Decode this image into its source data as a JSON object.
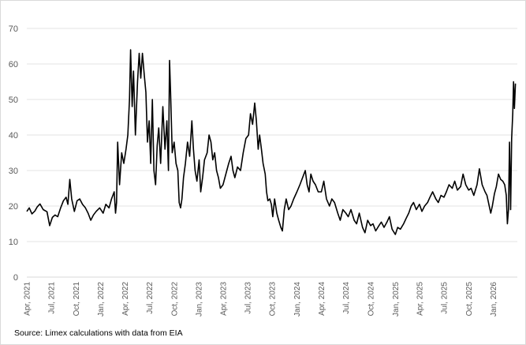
{
  "chart_data": {
    "type": "line",
    "title": "",
    "xlabel": "",
    "ylabel": "",
    "ylim": [
      0,
      70
    ],
    "yticks": [
      0,
      10,
      20,
      30,
      40,
      50,
      60,
      70
    ],
    "grid": "horizontal",
    "legend": "none",
    "x_tick_labels": [
      "Apr, 2021",
      "Jul, 2021",
      "Oct, 2021",
      "Jan, 2022",
      "Apr, 2022",
      "Jul, 2022",
      "Oct, 2022",
      "Jan, 2023",
      "Apr, 2023",
      "Jul, 2023",
      "Oct, 2023",
      "Jan, 2024",
      "Apr, 2024",
      "Jul, 2024",
      "Oct, 2024",
      "Jan, 2025",
      "Apr, 2025",
      "Jul, 2025",
      "Oct, 2025",
      "Jan, 2026"
    ],
    "series": [
      {
        "color": "#000000",
        "points": [
          [
            "2021-04-01",
            18.5
          ],
          [
            "2021-04-10",
            19.5
          ],
          [
            "2021-04-20",
            17.8
          ],
          [
            "2021-05-01",
            18.6
          ],
          [
            "2021-05-10",
            19.8
          ],
          [
            "2021-05-20",
            20.6
          ],
          [
            "2021-06-01",
            19.0
          ],
          [
            "2021-06-15",
            18.4
          ],
          [
            "2021-06-25",
            14.5
          ],
          [
            "2021-07-05",
            16.8
          ],
          [
            "2021-07-15",
            17.5
          ],
          [
            "2021-07-25",
            17.0
          ],
          [
            "2021-08-05",
            19.5
          ],
          [
            "2021-08-15",
            21.5
          ],
          [
            "2021-08-25",
            22.5
          ],
          [
            "2021-09-01",
            20.5
          ],
          [
            "2021-09-08",
            27.5
          ],
          [
            "2021-09-15",
            22.0
          ],
          [
            "2021-09-25",
            18.5
          ],
          [
            "2021-10-05",
            21.5
          ],
          [
            "2021-10-15",
            22.0
          ],
          [
            "2021-10-25",
            20.5
          ],
          [
            "2021-11-05",
            19.5
          ],
          [
            "2021-11-15",
            18.0
          ],
          [
            "2021-11-25",
            16.0
          ],
          [
            "2021-12-05",
            17.5
          ],
          [
            "2021-12-15",
            18.5
          ],
          [
            "2021-12-28",
            19.5
          ],
          [
            "2022-01-10",
            18.0
          ],
          [
            "2022-01-20",
            20.5
          ],
          [
            "2022-02-01",
            19.5
          ],
          [
            "2022-02-10",
            22.0
          ],
          [
            "2022-02-20",
            24.0
          ],
          [
            "2022-02-25",
            18.0
          ],
          [
            "2022-03-01",
            21.0
          ],
          [
            "2022-03-05",
            38.0
          ],
          [
            "2022-03-12",
            26.0
          ],
          [
            "2022-03-20",
            35.0
          ],
          [
            "2022-03-28",
            32.0
          ],
          [
            "2022-04-05",
            36.0
          ],
          [
            "2022-04-12",
            40.0
          ],
          [
            "2022-04-18",
            50.0
          ],
          [
            "2022-04-22",
            64.0
          ],
          [
            "2022-04-28",
            48.0
          ],
          [
            "2022-05-03",
            58.0
          ],
          [
            "2022-05-10",
            40.0
          ],
          [
            "2022-05-18",
            55.0
          ],
          [
            "2022-05-24",
            63.0
          ],
          [
            "2022-05-30",
            56.0
          ],
          [
            "2022-06-05",
            63.0
          ],
          [
            "2022-06-12",
            57.0
          ],
          [
            "2022-06-18",
            52.0
          ],
          [
            "2022-06-24",
            38.0
          ],
          [
            "2022-06-30",
            44.0
          ],
          [
            "2022-07-06",
            32.0
          ],
          [
            "2022-07-12",
            50.0
          ],
          [
            "2022-07-18",
            30.0
          ],
          [
            "2022-07-24",
            26.0
          ],
          [
            "2022-07-30",
            37.0
          ],
          [
            "2022-08-05",
            42.0
          ],
          [
            "2022-08-12",
            32.0
          ],
          [
            "2022-08-20",
            48.0
          ],
          [
            "2022-08-28",
            36.0
          ],
          [
            "2022-09-04",
            44.0
          ],
          [
            "2022-09-10",
            30.0
          ],
          [
            "2022-09-14",
            61.0
          ],
          [
            "2022-09-18",
            52.0
          ],
          [
            "2022-09-24",
            35.0
          ],
          [
            "2022-10-01",
            38.0
          ],
          [
            "2022-10-08",
            32.0
          ],
          [
            "2022-10-15",
            30.0
          ],
          [
            "2022-10-20",
            21.0
          ],
          [
            "2022-10-25",
            19.5
          ],
          [
            "2022-10-30",
            22.0
          ],
          [
            "2022-11-05",
            28.0
          ],
          [
            "2022-11-12",
            32.0
          ],
          [
            "2022-11-20",
            38.0
          ],
          [
            "2022-11-28",
            34.0
          ],
          [
            "2022-12-06",
            44.0
          ],
          [
            "2022-12-12",
            36.0
          ],
          [
            "2022-12-18",
            30.0
          ],
          [
            "2022-12-25",
            27.0
          ],
          [
            "2023-01-02",
            33.0
          ],
          [
            "2023-01-08",
            24.0
          ],
          [
            "2023-01-15",
            28.0
          ],
          [
            "2023-01-22",
            33.0
          ],
          [
            "2023-02-01",
            35.0
          ],
          [
            "2023-02-08",
            40.0
          ],
          [
            "2023-02-15",
            38.0
          ],
          [
            "2023-02-22",
            33.0
          ],
          [
            "2023-03-01",
            35.0
          ],
          [
            "2023-03-08",
            30.0
          ],
          [
            "2023-03-15",
            28.0
          ],
          [
            "2023-03-22",
            25.0
          ],
          [
            "2023-04-01",
            26.0
          ],
          [
            "2023-04-08",
            28.0
          ],
          [
            "2023-04-15",
            30.0
          ],
          [
            "2023-04-22",
            32.0
          ],
          [
            "2023-05-01",
            34.0
          ],
          [
            "2023-05-08",
            30.0
          ],
          [
            "2023-05-15",
            28.0
          ],
          [
            "2023-05-25",
            31.0
          ],
          [
            "2023-06-05",
            30.0
          ],
          [
            "2023-06-15",
            35.0
          ],
          [
            "2023-06-25",
            39.0
          ],
          [
            "2023-07-05",
            40.0
          ],
          [
            "2023-07-12",
            46.0
          ],
          [
            "2023-07-20",
            43.0
          ],
          [
            "2023-07-28",
            49.0
          ],
          [
            "2023-08-03",
            44.0
          ],
          [
            "2023-08-10",
            36.0
          ],
          [
            "2023-08-15",
            40.0
          ],
          [
            "2023-08-22",
            36.0
          ],
          [
            "2023-08-28",
            32.0
          ],
          [
            "2023-09-05",
            29.0
          ],
          [
            "2023-09-10",
            24.0
          ],
          [
            "2023-09-15",
            21.5
          ],
          [
            "2023-09-22",
            22.0
          ],
          [
            "2023-09-28",
            20.5
          ],
          [
            "2023-10-03",
            17.0
          ],
          [
            "2023-10-10",
            22.0
          ],
          [
            "2023-10-18",
            18.0
          ],
          [
            "2023-10-25",
            16.0
          ],
          [
            "2023-11-02",
            14.0
          ],
          [
            "2023-11-08",
            13.0
          ],
          [
            "2023-11-15",
            19.0
          ],
          [
            "2023-11-22",
            22.0
          ],
          [
            "2023-12-01",
            19.0
          ],
          [
            "2023-12-10",
            20.0
          ],
          [
            "2023-12-20",
            22.0
          ],
          [
            "2024-01-01",
            24.0
          ],
          [
            "2024-01-12",
            26.0
          ],
          [
            "2024-01-22",
            28.0
          ],
          [
            "2024-02-01",
            30.0
          ],
          [
            "2024-02-08",
            26.0
          ],
          [
            "2024-02-15",
            24.0
          ],
          [
            "2024-02-22",
            29.0
          ],
          [
            "2024-03-01",
            27.0
          ],
          [
            "2024-03-10",
            26.0
          ],
          [
            "2024-03-20",
            24.0
          ],
          [
            "2024-04-01",
            24.0
          ],
          [
            "2024-04-10",
            27.0
          ],
          [
            "2024-04-20",
            22.0
          ],
          [
            "2024-05-01",
            20.0
          ],
          [
            "2024-05-10",
            22.0
          ],
          [
            "2024-05-20",
            21.0
          ],
          [
            "2024-06-01",
            18.0
          ],
          [
            "2024-06-10",
            16.0
          ],
          [
            "2024-06-20",
            19.0
          ],
          [
            "2024-07-01",
            18.0
          ],
          [
            "2024-07-10",
            17.0
          ],
          [
            "2024-07-20",
            19.0
          ],
          [
            "2024-08-01",
            16.0
          ],
          [
            "2024-08-10",
            15.0
          ],
          [
            "2024-08-20",
            18.0
          ],
          [
            "2024-09-01",
            14.0
          ],
          [
            "2024-09-10",
            12.5
          ],
          [
            "2024-09-20",
            16.0
          ],
          [
            "2024-10-01",
            14.5
          ],
          [
            "2024-10-10",
            15.0
          ],
          [
            "2024-10-20",
            13.0
          ],
          [
            "2024-11-01",
            14.5
          ],
          [
            "2024-11-10",
            15.5
          ],
          [
            "2024-11-20",
            14.0
          ],
          [
            "2024-12-01",
            15.5
          ],
          [
            "2024-12-10",
            17.0
          ],
          [
            "2024-12-20",
            13.5
          ],
          [
            "2025-01-01",
            12.0
          ],
          [
            "2025-01-10",
            14.0
          ],
          [
            "2025-01-20",
            13.5
          ],
          [
            "2025-02-01",
            15.0
          ],
          [
            "2025-02-10",
            16.5
          ],
          [
            "2025-02-20",
            18.0
          ],
          [
            "2025-03-01",
            20.0
          ],
          [
            "2025-03-10",
            21.0
          ],
          [
            "2025-03-20",
            19.0
          ],
          [
            "2025-04-01",
            20.5
          ],
          [
            "2025-04-10",
            18.5
          ],
          [
            "2025-04-20",
            20.0
          ],
          [
            "2025-05-01",
            21.0
          ],
          [
            "2025-05-10",
            22.5
          ],
          [
            "2025-05-20",
            24.0
          ],
          [
            "2025-06-01",
            22.0
          ],
          [
            "2025-06-10",
            21.0
          ],
          [
            "2025-06-20",
            23.0
          ],
          [
            "2025-07-01",
            22.5
          ],
          [
            "2025-07-10",
            24.0
          ],
          [
            "2025-07-20",
            26.0
          ],
          [
            "2025-08-01",
            25.0
          ],
          [
            "2025-08-10",
            27.0
          ],
          [
            "2025-08-20",
            24.5
          ],
          [
            "2025-09-01",
            25.5
          ],
          [
            "2025-09-10",
            29.0
          ],
          [
            "2025-09-20",
            26.0
          ],
          [
            "2025-10-01",
            24.5
          ],
          [
            "2025-10-10",
            25.0
          ],
          [
            "2025-10-20",
            23.0
          ],
          [
            "2025-11-01",
            26.0
          ],
          [
            "2025-11-10",
            30.5
          ],
          [
            "2025-11-20",
            26.0
          ],
          [
            "2025-12-01",
            24.0
          ],
          [
            "2025-12-08",
            23.0
          ],
          [
            "2025-12-15",
            20.5
          ],
          [
            "2025-12-22",
            18.0
          ],
          [
            "2025-12-28",
            20.0
          ],
          [
            "2026-01-05",
            23.5
          ],
          [
            "2026-01-12",
            25.5
          ],
          [
            "2026-01-20",
            29.0
          ],
          [
            "2026-01-28",
            27.5
          ],
          [
            "2026-02-05",
            27.0
          ],
          [
            "2026-02-12",
            26.0
          ],
          [
            "2026-02-18",
            23.0
          ],
          [
            "2026-02-22",
            15.0
          ],
          [
            "2026-02-26",
            19.0
          ],
          [
            "2026-03-02",
            38.0
          ],
          [
            "2026-03-06",
            19.0
          ],
          [
            "2026-03-10",
            39.0
          ],
          [
            "2026-03-14",
            46.0
          ],
          [
            "2026-03-17",
            55.0
          ],
          [
            "2026-03-20",
            47.5
          ],
          [
            "2026-03-24",
            54.5
          ]
        ]
      }
    ]
  },
  "source": "Source: Limex calculations with data from EIA"
}
